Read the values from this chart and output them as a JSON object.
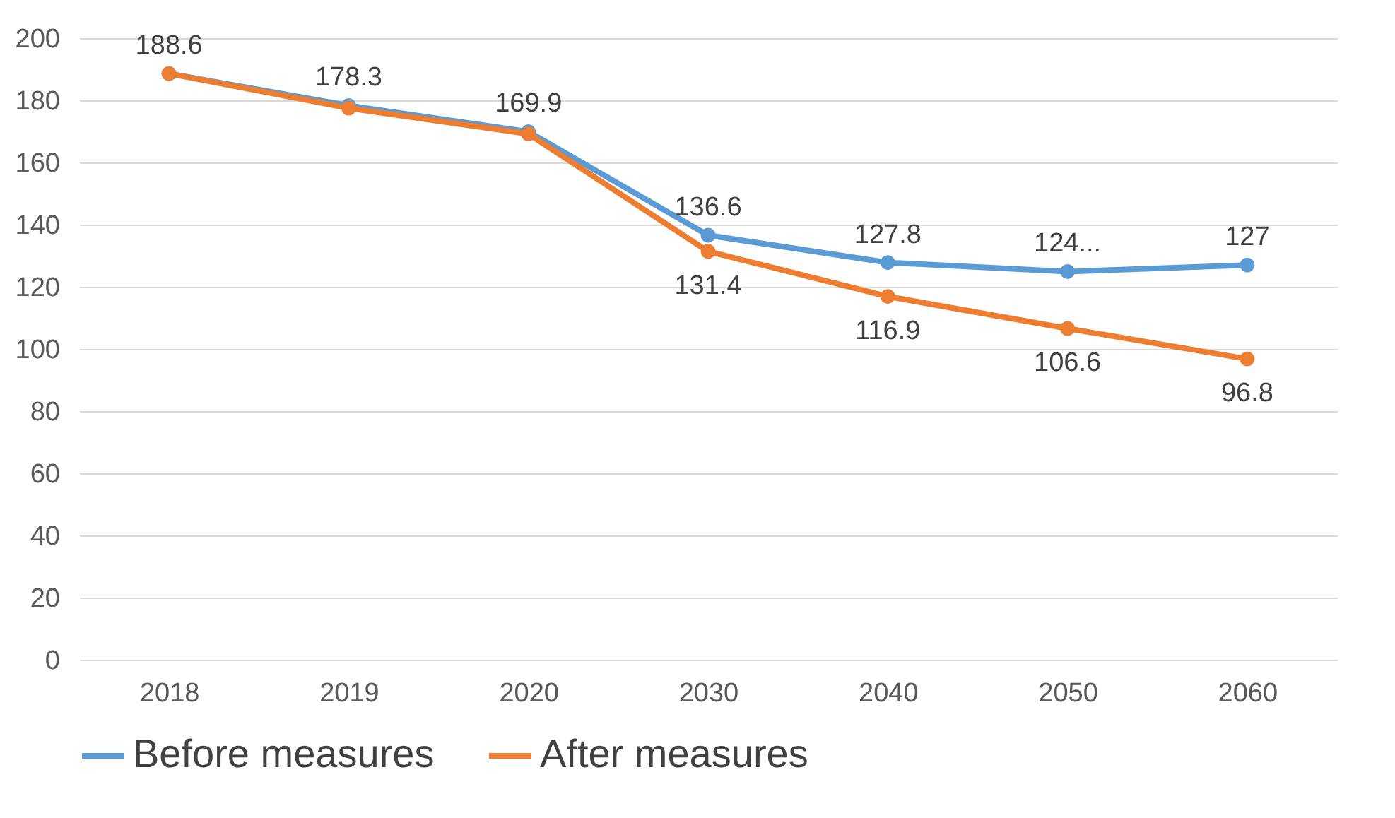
{
  "chart_data": {
    "type": "line",
    "categories": [
      "2018",
      "2019",
      "2020",
      "2030",
      "2040",
      "2050",
      "2060"
    ],
    "series": [
      {
        "name": "Before measures",
        "color": "#5b9bd5",
        "values": [
          188.6,
          178.3,
          169.9,
          136.6,
          127.8,
          124.9,
          127
        ],
        "value_labels": [
          "188.6",
          "178.3",
          "169.9",
          "136.6",
          "127.8",
          "124...",
          "127"
        ]
      },
      {
        "name": "After measures",
        "color": "#ed7d31",
        "values": [
          188.6,
          177.5,
          169.2,
          131.4,
          116.9,
          106.6,
          96.8
        ],
        "value_labels": [
          null,
          null,
          null,
          "131.4",
          "116.9",
          "106.6",
          "96.8"
        ]
      }
    ],
    "ylim": [
      0,
      200
    ],
    "yticks": [
      0,
      20,
      40,
      60,
      80,
      100,
      120,
      140,
      160,
      180,
      200
    ],
    "grid": "y",
    "legend": "bottom",
    "marker": "circle"
  }
}
